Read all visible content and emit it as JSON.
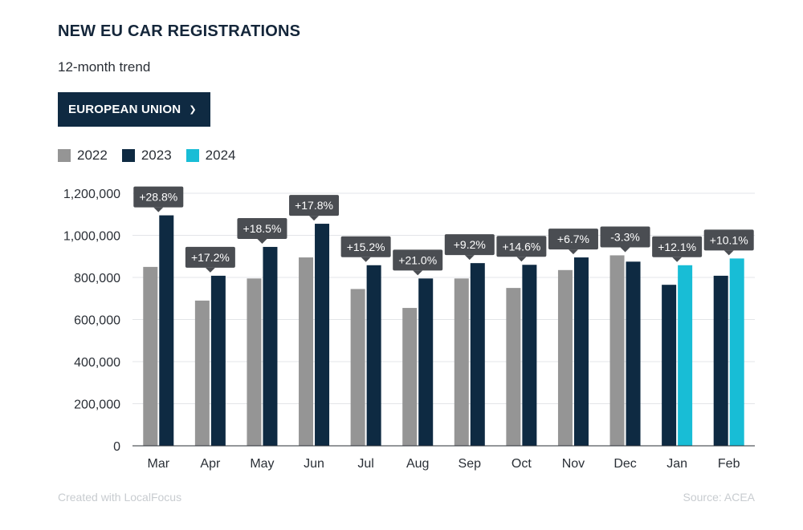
{
  "header": {
    "title": "NEW EU CAR REGISTRATIONS",
    "subtitle": "12-month trend"
  },
  "filter": {
    "selected": "EUROPEAN UNION",
    "icon": "chevron-down-icon"
  },
  "footer": {
    "credit": "Created with LocalFocus",
    "source": "Source: ACEA"
  },
  "chart_data": {
    "type": "bar",
    "categories": [
      "Mar",
      "Apr",
      "May",
      "Jun",
      "Jul",
      "Aug",
      "Sep",
      "Oct",
      "Nov",
      "Dec",
      "Jan",
      "Feb"
    ],
    "series": [
      {
        "name": "2022",
        "color": "#959595",
        "values": [
          850000,
          690000,
          795000,
          895000,
          745000,
          655000,
          795000,
          750000,
          835000,
          905000,
          null,
          null
        ]
      },
      {
        "name": "2023",
        "color": "#0e2a42",
        "values": [
          1095000,
          808000,
          945000,
          1055000,
          858000,
          795000,
          868000,
          860000,
          895000,
          875000,
          765000,
          808000
        ]
      },
      {
        "name": "2024",
        "color": "#18bdd6",
        "values": [
          null,
          null,
          null,
          null,
          null,
          null,
          null,
          null,
          null,
          null,
          858000,
          890000
        ]
      }
    ],
    "annotations": [
      "+28.8%",
      "+17.2%",
      "+18.5%",
      "+17.8%",
      "+15.2%",
      "+21.0%",
      "+9.2%",
      "+14.6%",
      "+6.7%",
      "-3.3%",
      "+12.1%",
      "+10.1%"
    ],
    "yticks": [
      0,
      200000,
      400000,
      600000,
      800000,
      1000000,
      1200000
    ],
    "ytick_labels": [
      "0",
      "200,000",
      "400,000",
      "600,000",
      "800,000",
      "1,000,000",
      "1,200,000"
    ],
    "ylim": [
      0,
      1200000
    ],
    "grid": true,
    "legend_position": "top-left"
  }
}
